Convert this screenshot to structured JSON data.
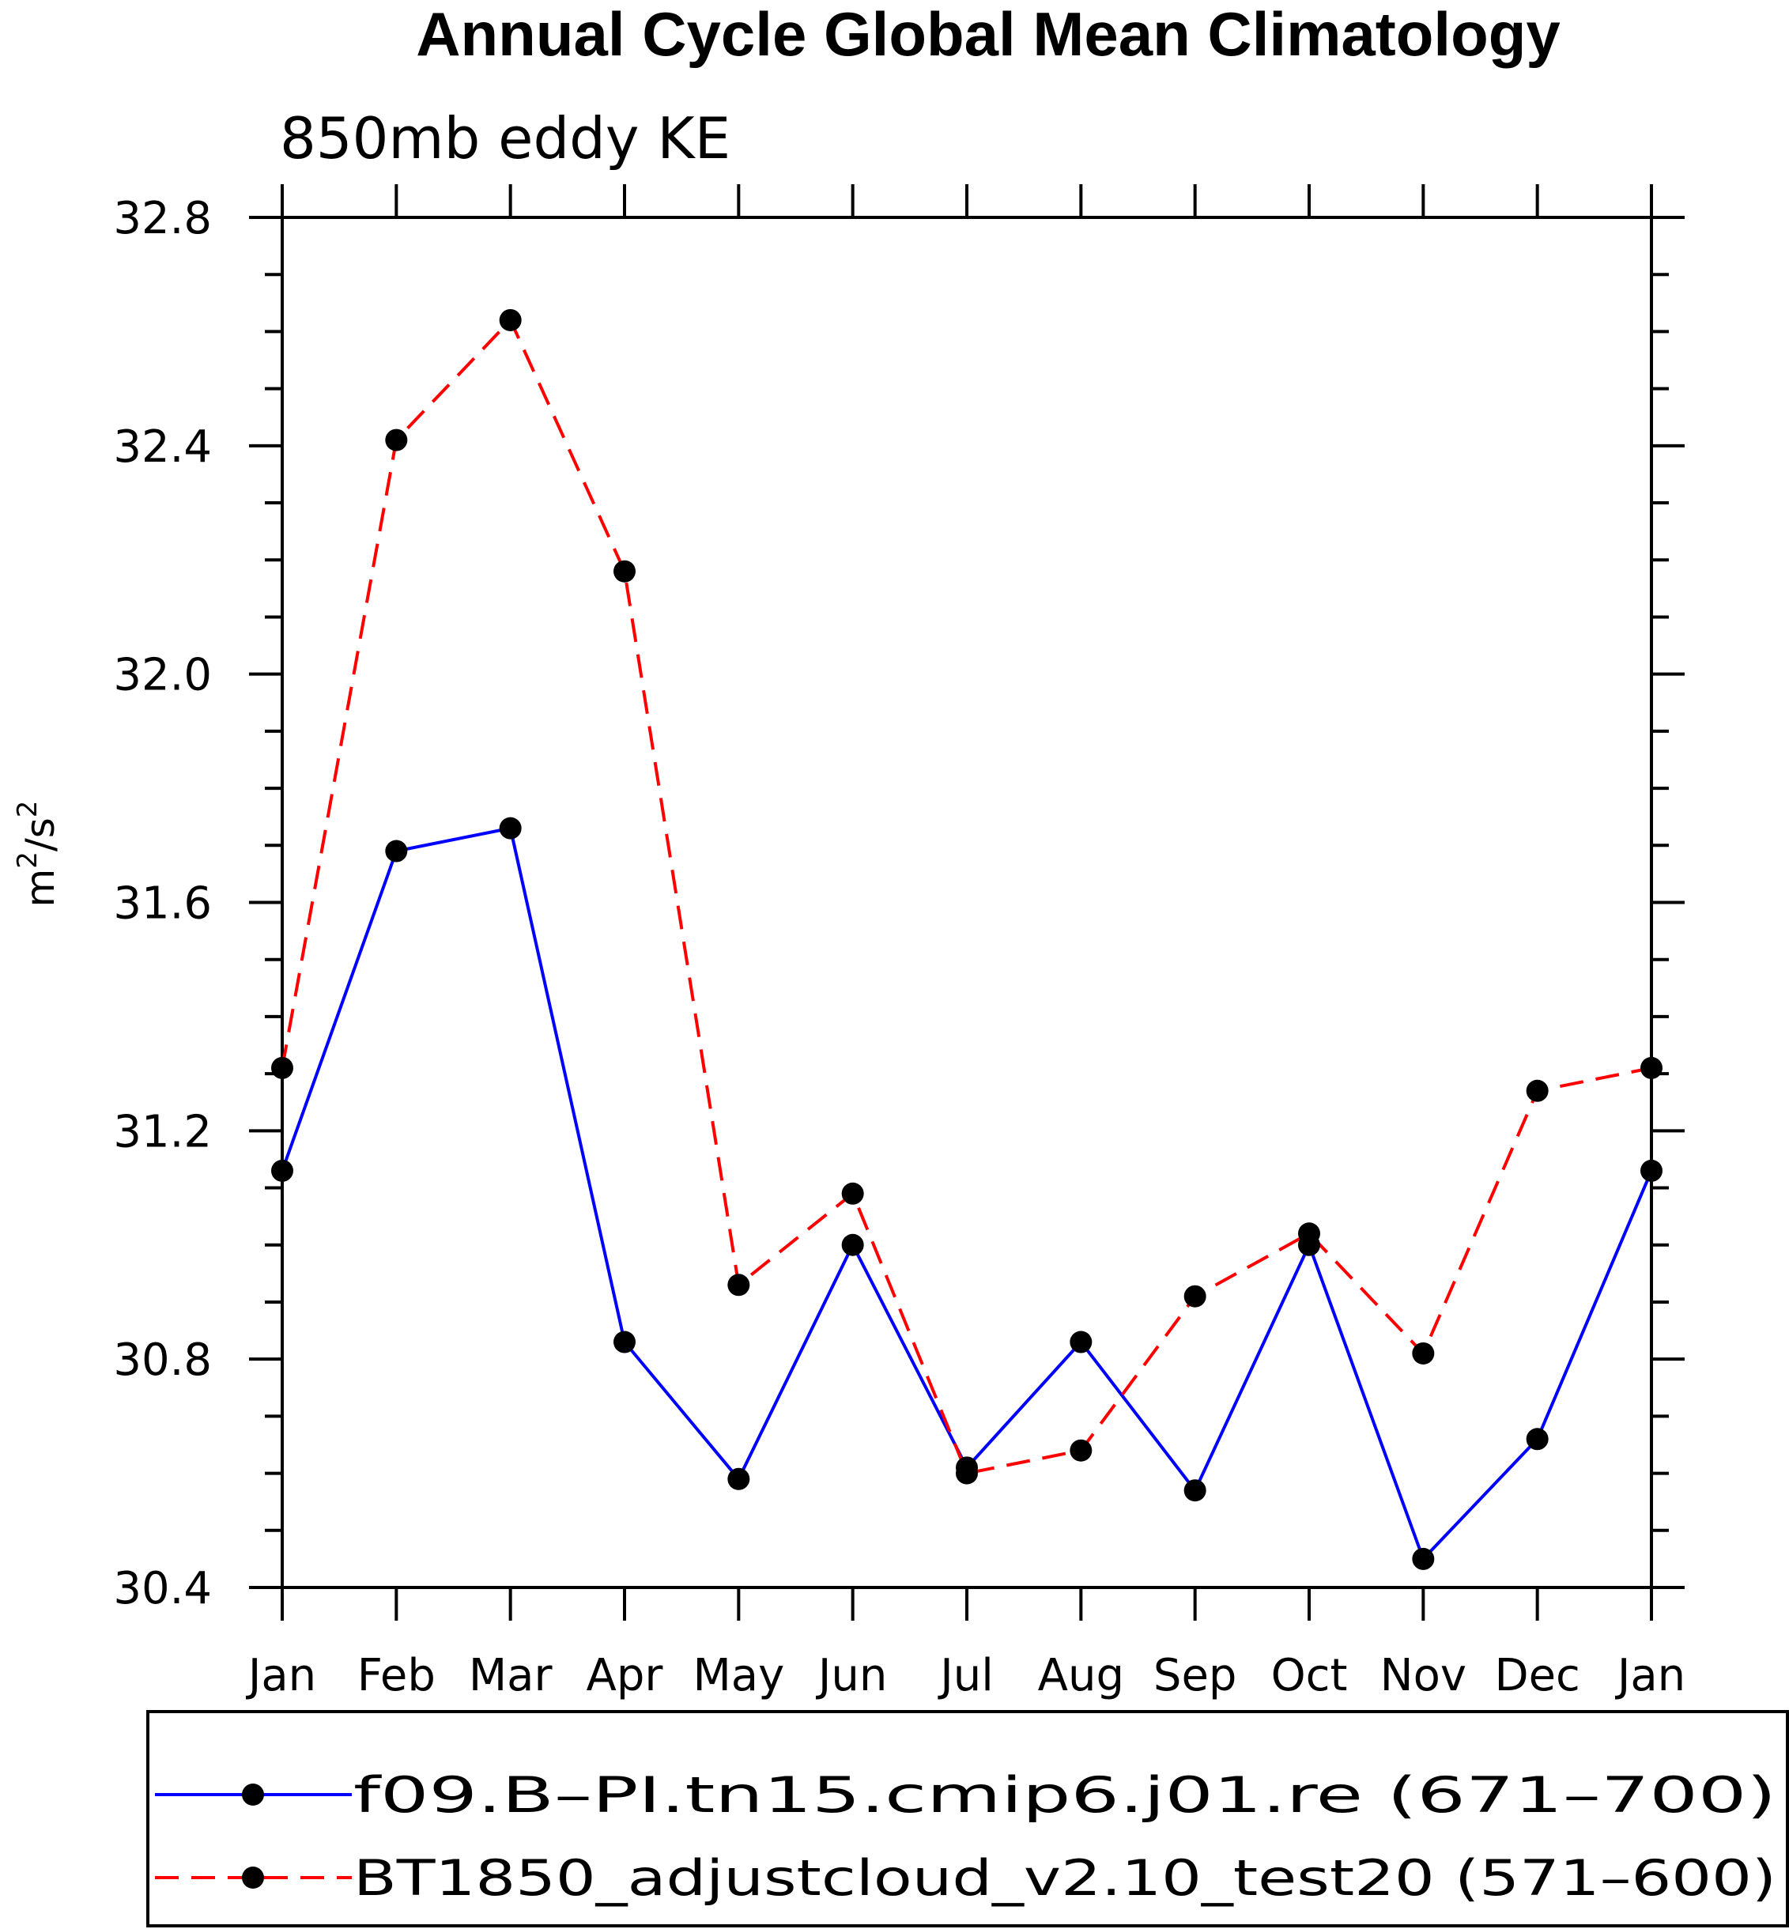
{
  "chart_data": {
    "type": "line",
    "title": "Annual Cycle Global Mean Climatology",
    "subtitle": "850mb eddy KE",
    "ylabel": "m²/s²",
    "xlabel": "",
    "categories": [
      "Jan",
      "Feb",
      "Mar",
      "Apr",
      "May",
      "Jun",
      "Jul",
      "Aug",
      "Sep",
      "Oct",
      "Nov",
      "Dec",
      "Jan"
    ],
    "ylim": [
      30.4,
      32.8
    ],
    "yticks": [
      "30.4",
      "30.8",
      "31.2",
      "31.6",
      "32.0",
      "32.4",
      "32.8"
    ],
    "series": [
      {
        "name": "f09.B–PI.tn15.cmip6.j01.re (671–700)",
        "color": "#0000ff",
        "dash": "solid",
        "values": [
          31.13,
          31.69,
          31.73,
          30.83,
          30.59,
          31.0,
          30.61,
          30.83,
          30.57,
          31.0,
          30.45,
          30.66,
          31.13
        ]
      },
      {
        "name": "BT1850_adjustcloud_v2.10_test20 (571–600)",
        "color": "#ff0000",
        "dash": "dashed",
        "values": [
          31.31,
          32.41,
          32.62,
          32.18,
          30.93,
          31.09,
          30.6,
          30.64,
          30.91,
          31.02,
          30.81,
          31.27,
          31.31
        ]
      }
    ],
    "legend_position": "bottom",
    "grid": false
  }
}
